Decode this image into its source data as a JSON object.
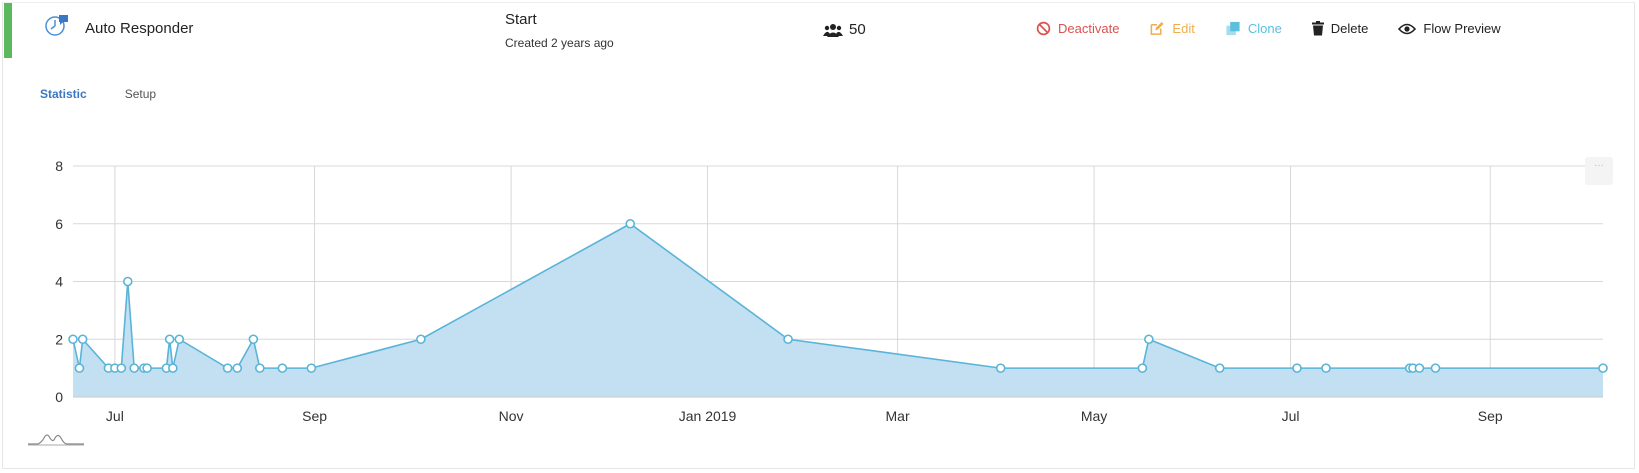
{
  "flow": {
    "title": "Auto Responder",
    "status": "Start",
    "created": "Created 2 years ago",
    "subscribers": "50",
    "accent_color": "#5cb85c"
  },
  "actions": {
    "deactivate": "Deactivate",
    "edit": "Edit",
    "clone": "Clone",
    "delete": "Delete",
    "flow_preview": "Flow Preview"
  },
  "tabs": [
    {
      "label": "Statistic",
      "active": true
    },
    {
      "label": "Setup",
      "active": false
    }
  ],
  "icons": {
    "flow": "robot-message-icon",
    "subscribers": "users-icon",
    "deactivate": "ban-icon",
    "edit": "pencil-square-icon",
    "clone": "clone-icon",
    "delete": "trash-icon",
    "preview": "eye-icon",
    "chart_menu": "dots-icon",
    "mini": "sparkline-icon"
  },
  "chart_data": {
    "type": "area",
    "title": "",
    "xlabel": "",
    "ylabel": "",
    "ylim": [
      0,
      8
    ],
    "yticks": [
      0,
      2,
      4,
      6,
      8
    ],
    "xlim": [
      "2018-06-18",
      "2019-10-06"
    ],
    "xticks": [
      {
        "date": "2018-07-01",
        "label": "Jul"
      },
      {
        "date": "2018-09-01",
        "label": "Sep"
      },
      {
        "date": "2018-11-01",
        "label": "Nov"
      },
      {
        "date": "2019-01-01",
        "label": "Jan 2019"
      },
      {
        "date": "2019-03-01",
        "label": "Mar"
      },
      {
        "date": "2019-05-01",
        "label": "May"
      },
      {
        "date": "2019-07-01",
        "label": "Jul"
      },
      {
        "date": "2019-09-01",
        "label": "Sep"
      }
    ],
    "grid": true,
    "fill_color": "#c2e0f2",
    "line_color": "#5ab4d8",
    "points": [
      {
        "x": "2018-06-18",
        "y": 2
      },
      {
        "x": "2018-06-20",
        "y": 1
      },
      {
        "x": "2018-06-21",
        "y": 2
      },
      {
        "x": "2018-06-29",
        "y": 1
      },
      {
        "x": "2018-07-01",
        "y": 1
      },
      {
        "x": "2018-07-03",
        "y": 1
      },
      {
        "x": "2018-07-05",
        "y": 4
      },
      {
        "x": "2018-07-07",
        "y": 1
      },
      {
        "x": "2018-07-10",
        "y": 1
      },
      {
        "x": "2018-07-11",
        "y": 1
      },
      {
        "x": "2018-07-17",
        "y": 1
      },
      {
        "x": "2018-07-18",
        "y": 2
      },
      {
        "x": "2018-07-19",
        "y": 1
      },
      {
        "x": "2018-07-21",
        "y": 2
      },
      {
        "x": "2018-08-05",
        "y": 1
      },
      {
        "x": "2018-08-08",
        "y": 1
      },
      {
        "x": "2018-08-13",
        "y": 2
      },
      {
        "x": "2018-08-15",
        "y": 1
      },
      {
        "x": "2018-08-22",
        "y": 1
      },
      {
        "x": "2018-08-31",
        "y": 1
      },
      {
        "x": "2018-10-04",
        "y": 2
      },
      {
        "x": "2018-12-08",
        "y": 6
      },
      {
        "x": "2019-01-26",
        "y": 2
      },
      {
        "x": "2019-04-02",
        "y": 1
      },
      {
        "x": "2019-05-16",
        "y": 1
      },
      {
        "x": "2019-05-18",
        "y": 2
      },
      {
        "x": "2019-06-09",
        "y": 1
      },
      {
        "x": "2019-07-03",
        "y": 1
      },
      {
        "x": "2019-07-12",
        "y": 1
      },
      {
        "x": "2019-08-07",
        "y": 1
      },
      {
        "x": "2019-08-08",
        "y": 1
      },
      {
        "x": "2019-08-10",
        "y": 1
      },
      {
        "x": "2019-08-15",
        "y": 1
      },
      {
        "x": "2019-10-06",
        "y": 1
      }
    ]
  }
}
